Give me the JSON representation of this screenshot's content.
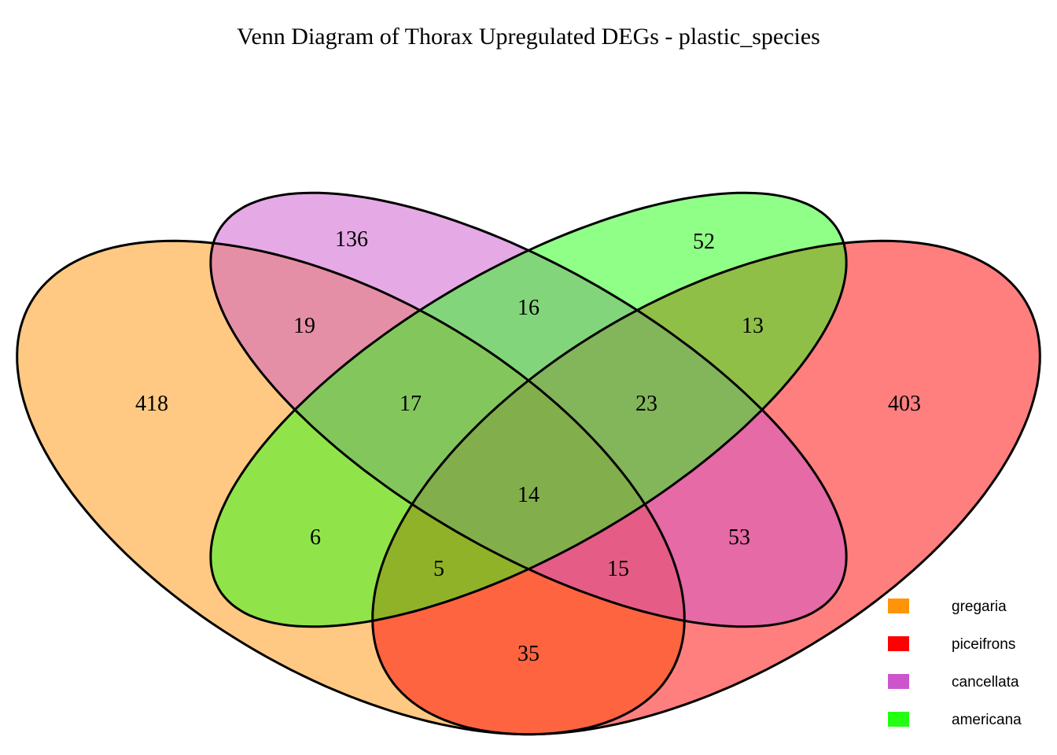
{
  "chart_data": {
    "type": "venn",
    "title": "Venn Diagram of Thorax Upregulated DEGs - plastic_species",
    "sets": [
      {
        "name": "gregaria",
        "color": "#FF9408"
      },
      {
        "name": "piceifrons",
        "color": "#FF0000"
      },
      {
        "name": "cancellata",
        "color": "#CC55CC"
      },
      {
        "name": "americana",
        "color": "#22FF11"
      }
    ],
    "fill_opacity": 0.5,
    "legend_position": "bottom-right",
    "regions": [
      {
        "id": "g",
        "sets": [
          "gregaria"
        ],
        "count": 418
      },
      {
        "id": "c",
        "sets": [
          "cancellata"
        ],
        "count": 136
      },
      {
        "id": "a",
        "sets": [
          "americana"
        ],
        "count": 52
      },
      {
        "id": "p",
        "sets": [
          "piceifrons"
        ],
        "count": 403
      },
      {
        "id": "gc",
        "sets": [
          "gregaria",
          "cancellata"
        ],
        "count": 19
      },
      {
        "id": "ca",
        "sets": [
          "cancellata",
          "americana"
        ],
        "count": 16
      },
      {
        "id": "ap",
        "sets": [
          "americana",
          "piceifrons"
        ],
        "count": 13
      },
      {
        "id": "gca",
        "sets": [
          "gregaria",
          "cancellata",
          "americana"
        ],
        "count": 17
      },
      {
        "id": "cap",
        "sets": [
          "cancellata",
          "americana",
          "piceifrons"
        ],
        "count": 23
      },
      {
        "id": "gcap",
        "sets": [
          "gregaria",
          "cancellata",
          "americana",
          "piceifrons"
        ],
        "count": 14
      },
      {
        "id": "ga",
        "sets": [
          "gregaria",
          "americana"
        ],
        "count": 6
      },
      {
        "id": "cp",
        "sets": [
          "cancellata",
          "piceifrons"
        ],
        "count": 53
      },
      {
        "id": "gap",
        "sets": [
          "gregaria",
          "americana",
          "piceifrons"
        ],
        "count": 5
      },
      {
        "id": "gcp",
        "sets": [
          "gregaria",
          "cancellata",
          "piceifrons"
        ],
        "count": 15
      },
      {
        "id": "gp",
        "sets": [
          "gregaria",
          "piceifrons"
        ],
        "count": 35
      }
    ]
  }
}
